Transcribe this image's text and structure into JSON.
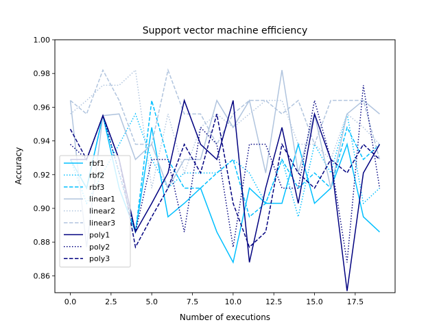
{
  "chart_data": {
    "type": "line",
    "title": "Support vector machine efficiency",
    "xlabel": "Number of executions",
    "ylabel": "Accuracy",
    "xlim": [
      -0.95,
      19.95
    ],
    "ylim": [
      0.85,
      1.0
    ],
    "xticks": [
      0.0,
      2.5,
      5.0,
      7.5,
      10.0,
      12.5,
      15.0,
      17.5
    ],
    "xtick_labels": [
      "0.0",
      "2.5",
      "5.0",
      "7.5",
      "10.0",
      "12.5",
      "15.0",
      "17.5"
    ],
    "yticks": [
      0.86,
      0.88,
      0.9,
      0.92,
      0.94,
      0.96,
      0.98,
      1.0
    ],
    "ytick_labels": [
      "0.86",
      "0.88",
      "0.90",
      "0.92",
      "0.94",
      "0.96",
      "0.98",
      "1.00"
    ],
    "grid": false,
    "legend_position": "lower-left",
    "x": [
      0,
      1,
      2,
      3,
      4,
      5,
      6,
      7,
      8,
      9,
      10,
      11,
      12,
      13,
      14,
      15,
      16,
      17,
      18,
      19
    ],
    "series": [
      {
        "name": "rbf1",
        "color": "#00bfff",
        "dash": "solid",
        "values": [
          0.929,
          0.912,
          0.955,
          0.912,
          0.886,
          0.948,
          0.895,
          0.903,
          0.912,
          0.886,
          0.868,
          0.912,
          0.903,
          0.903,
          0.938,
          0.903,
          0.912,
          0.938,
          0.895,
          0.886
        ]
      },
      {
        "name": "rbf2",
        "color": "#00bfff",
        "dash": "dotted",
        "values": [
          0.929,
          0.903,
          0.921,
          0.938,
          0.956,
          0.929,
          0.912,
          0.921,
          0.921,
          0.921,
          0.929,
          0.921,
          0.903,
          0.929,
          0.895,
          0.938,
          0.921,
          0.956,
          0.903,
          0.912
        ]
      },
      {
        "name": "rbf3",
        "color": "#00bfff",
        "dash": "dashed",
        "values": [
          0.929,
          0.912,
          0.955,
          0.921,
          0.886,
          0.964,
          0.929,
          0.912,
          0.912,
          0.921,
          0.929,
          0.895,
          0.903,
          0.929,
          0.912,
          0.921,
          0.912,
          0.948,
          0.929,
          0.938
        ]
      },
      {
        "name": "linear1",
        "color": "#b0c4de",
        "dash": "solid",
        "values": [
          0.964,
          0.877,
          0.955,
          0.956,
          0.929,
          0.938,
          0.912,
          0.929,
          0.929,
          0.964,
          0.948,
          0.964,
          0.921,
          0.982,
          0.921,
          0.956,
          0.912,
          0.956,
          0.964,
          0.956
        ]
      },
      {
        "name": "linear2",
        "color": "#b0c4de",
        "dash": "dotted",
        "values": [
          0.956,
          0.964,
          0.973,
          0.973,
          0.982,
          0.912,
          0.956,
          0.921,
          0.948,
          0.956,
          0.948,
          0.956,
          0.964,
          0.964,
          0.938,
          0.938,
          0.929,
          0.956,
          0.948,
          0.938
        ]
      },
      {
        "name": "linear3",
        "color": "#b0c4de",
        "dash": "dashed",
        "values": [
          0.964,
          0.956,
          0.982,
          0.964,
          0.938,
          0.938,
          0.982,
          0.956,
          0.956,
          0.938,
          0.956,
          0.964,
          0.964,
          0.956,
          0.964,
          0.938,
          0.964,
          0.964,
          0.964,
          0.929
        ]
      },
      {
        "name": "poly1",
        "color": "#00007f",
        "dash": "solid",
        "values": [
          0.929,
          0.929,
          0.955,
          0.929,
          0.886,
          0.903,
          0.921,
          0.964,
          0.938,
          0.929,
          0.964,
          0.868,
          0.912,
          0.948,
          0.903,
          0.956,
          0.929,
          0.851,
          0.921,
          0.938
        ]
      },
      {
        "name": "poly2",
        "color": "#00007f",
        "dash": "dotted",
        "values": [
          0.938,
          0.929,
          0.955,
          0.921,
          0.886,
          0.929,
          0.929,
          0.886,
          0.948,
          0.938,
          0.877,
          0.938,
          0.938,
          0.912,
          0.912,
          0.964,
          0.929,
          0.868,
          0.973,
          0.912
        ]
      },
      {
        "name": "poly3",
        "color": "#00007f",
        "dash": "dashed",
        "values": [
          0.947,
          0.929,
          0.955,
          0.929,
          0.877,
          0.895,
          0.912,
          0.938,
          0.921,
          0.956,
          0.903,
          0.877,
          0.886,
          0.938,
          0.921,
          0.912,
          0.929,
          0.921,
          0.938,
          0.929
        ]
      }
    ]
  }
}
